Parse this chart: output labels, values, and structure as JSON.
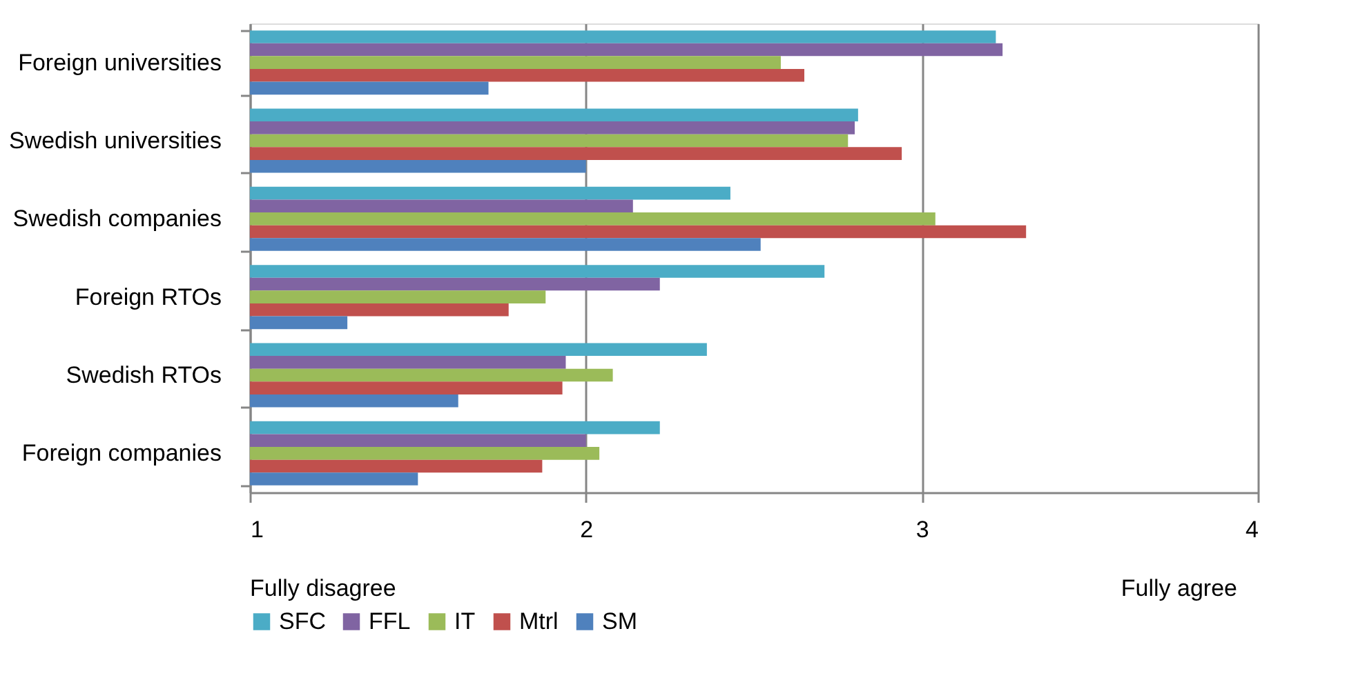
{
  "chart_data": {
    "type": "bar",
    "orientation": "horizontal",
    "categories": [
      "Foreign universities",
      "Swedish universities",
      "Swedish companies",
      "Foreign RTOs",
      "Swedish RTOs",
      "Foreign companies"
    ],
    "series": [
      {
        "name": "SFC",
        "color": "#4bacc6",
        "values": [
          3.22,
          2.81,
          2.43,
          2.71,
          2.36,
          2.22
        ]
      },
      {
        "name": "FFL",
        "color": "#8064a2",
        "values": [
          3.24,
          2.8,
          2.14,
          2.22,
          1.94,
          2.0
        ]
      },
      {
        "name": "IT",
        "color": "#9bbb59",
        "values": [
          2.58,
          2.78,
          3.04,
          1.88,
          2.08,
          2.04
        ]
      },
      {
        "name": "Mtrl",
        "color": "#c0504d",
        "values": [
          2.65,
          2.94,
          3.31,
          1.77,
          1.93,
          1.87
        ]
      },
      {
        "name": "SM",
        "color": "#4f81bd",
        "values": [
          1.71,
          2.0,
          2.52,
          1.29,
          1.62,
          1.5
        ]
      }
    ],
    "xlim": [
      1,
      4
    ],
    "xticks": [
      1,
      2,
      3,
      4
    ],
    "grid": "x",
    "legend": "bottom",
    "annotations": [
      "Fully disagree",
      "Fully agree"
    ]
  }
}
